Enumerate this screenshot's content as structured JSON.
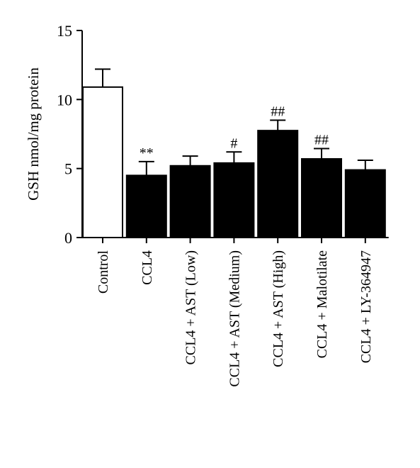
{
  "chart_data": {
    "type": "bar",
    "title": "",
    "xlabel": "",
    "ylabel": "GSH nmol/mg protein",
    "ylim": [
      0,
      15
    ],
    "yticks": [
      0,
      5,
      10,
      15
    ],
    "grid": false,
    "categories": [
      "Control",
      "CCL4",
      "CCL4 + AST (Low)",
      "CCL4 + AST (Medium)",
      "CCL4 + AST (High)",
      "CCL4 + Malotilate",
      "CCL4 + LY-364947"
    ],
    "values": [
      10.9,
      4.5,
      5.2,
      5.4,
      7.75,
      5.7,
      4.9
    ],
    "errors": [
      1.3,
      1.0,
      0.7,
      0.8,
      0.75,
      0.75,
      0.7
    ],
    "annotations": [
      "",
      "**",
      "",
      "#",
      "##",
      "##",
      ""
    ],
    "bar_colors": [
      "#ffffff",
      "#000000",
      "#000000",
      "#000000",
      "#000000",
      "#000000",
      "#000000"
    ],
    "edge_color": "#000000"
  }
}
